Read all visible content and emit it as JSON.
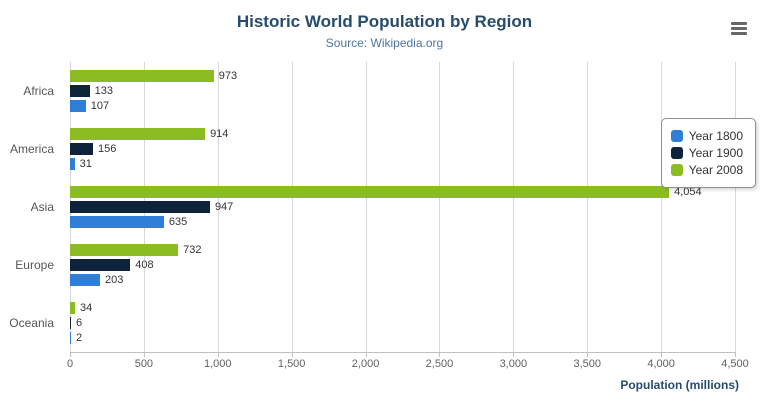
{
  "header": {
    "title": "Historic World Population by Region",
    "subtitle": "Source: Wikipedia.org"
  },
  "chart_data": {
    "type": "bar",
    "orientation": "horizontal",
    "title": "Historic World Population by Region",
    "subtitle": "Source: Wikipedia.org",
    "categories": [
      "Africa",
      "America",
      "Asia",
      "Europe",
      "Oceania"
    ],
    "series": [
      {
        "name": "Year 1800",
        "color": "#2f7ed8",
        "values": [
          107,
          31,
          635,
          203,
          2
        ],
        "labels": [
          "107",
          "31",
          "635",
          "203",
          "2"
        ]
      },
      {
        "name": "Year 1900",
        "color": "#0d233a",
        "values": [
          133,
          156,
          947,
          408,
          6
        ],
        "labels": [
          "133",
          "156",
          "947",
          "408",
          "6"
        ]
      },
      {
        "name": "Year 2008",
        "color": "#8bbc21",
        "values": [
          973,
          914,
          4054,
          732,
          34
        ],
        "labels": [
          "973",
          "914",
          "4,054",
          "732",
          "34"
        ]
      }
    ],
    "xlabel": "Population (millions)",
    "ylabel": "",
    "xlim": [
      0,
      4500
    ],
    "xtick_values": [
      0,
      500,
      1000,
      1500,
      2000,
      2500,
      3000,
      3500,
      4000,
      4500
    ],
    "xtick_labels": [
      "0",
      "500",
      "1,000",
      "1,500",
      "2,000",
      "2,500",
      "3,000",
      "3,500",
      "4,000",
      "4,500"
    ],
    "grid": true,
    "legend_position": "right",
    "series_display_order_top_to_bottom": [
      "Year 2008",
      "Year 1900",
      "Year 1800"
    ]
  }
}
